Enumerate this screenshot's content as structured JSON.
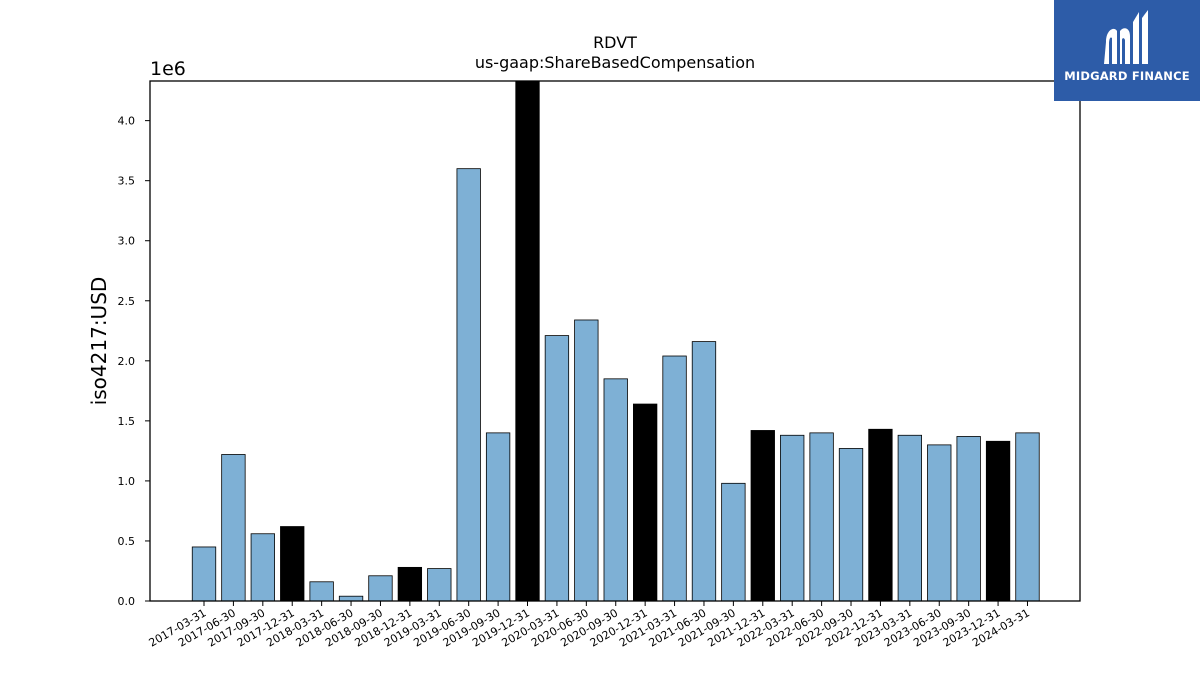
{
  "chart_data": {
    "type": "bar",
    "title": "RDVT",
    "subtitle": "us-gaap:ShareBasedCompensation",
    "ylabel": "iso4217:USD",
    "xlabel": "",
    "scale_label": "1e6",
    "ylim": [
      0,
      4.33
    ],
    "yticks": [
      "0.0",
      "0.5",
      "1.0",
      "1.5",
      "2.0",
      "2.5",
      "3.0",
      "3.5",
      "4.0"
    ],
    "categories": [
      "2017-03-31",
      "2017-06-30",
      "2017-09-30",
      "2017-12-31",
      "2018-03-31",
      "2018-06-30",
      "2018-09-30",
      "2018-12-31",
      "2019-03-31",
      "2019-06-30",
      "2019-09-30",
      "2019-12-31",
      "2020-03-31",
      "2020-06-30",
      "2020-09-30",
      "2020-12-31",
      "2021-03-31",
      "2021-06-30",
      "2021-09-30",
      "2021-12-31",
      "2022-03-31",
      "2022-06-30",
      "2022-09-30",
      "2022-12-31",
      "2023-03-31",
      "2023-06-30",
      "2023-09-30",
      "2023-12-31",
      "2024-03-31"
    ],
    "values": [
      0.45,
      1.22,
      0.56,
      0.62,
      0.16,
      0.04,
      0.21,
      0.28,
      0.27,
      3.6,
      1.4,
      4.33,
      2.21,
      2.34,
      1.85,
      1.64,
      2.04,
      2.16,
      0.98,
      1.42,
      1.38,
      1.4,
      1.27,
      1.43,
      1.38,
      1.3,
      1.37,
      1.33,
      1.4
    ],
    "year_end": [
      false,
      false,
      false,
      true,
      false,
      false,
      false,
      true,
      false,
      false,
      false,
      true,
      false,
      false,
      false,
      true,
      false,
      false,
      false,
      true,
      false,
      false,
      false,
      true,
      false,
      false,
      false,
      true,
      false
    ],
    "colors": {
      "bar": "#7eb0d5",
      "year_end_bar": "#000000",
      "edge": "#000000",
      "logo_bg": "#2d5ca8"
    },
    "grid": false,
    "legend": "none"
  },
  "logo": {
    "text": "MIDGARD FINANCE",
    "icon": "midgard-logo-icon"
  }
}
